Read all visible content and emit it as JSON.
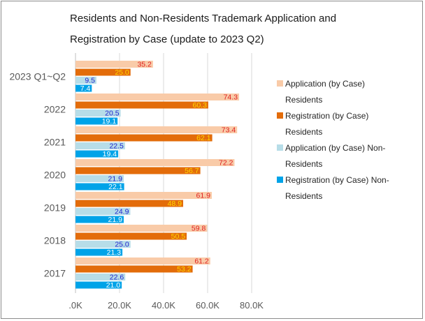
{
  "chart_data": {
    "type": "bar",
    "orientation": "horizontal",
    "title": "Residents and Non-Residents Trademark Application and Registration by Case (update to 2023 Q2)",
    "title_lines": [
      "Residents and Non-Residents Trademark Application and",
      "Registration by Case (update to 2023 Q2)"
    ],
    "categories": [
      "2023 Q1~Q2",
      "2022",
      "2021",
      "2020",
      "2019",
      "2018",
      "2017"
    ],
    "x_ticks": [
      ".0K",
      "20.0K",
      "40.0K",
      "60.0K",
      "80.0K"
    ],
    "xlim": [
      0,
      80
    ],
    "grid": true,
    "legend_position": "right",
    "series": [
      {
        "name": "Application (by Case) Residents",
        "legend_lines": [
          "Application (by Case)",
          "Residents"
        ],
        "color": "#f9cba8",
        "label_color": "#e02020",
        "values": [
          35.2,
          74.3,
          73.4,
          72.2,
          61.9,
          59.8,
          61.2
        ],
        "labels": [
          "35.2",
          "74.3",
          "73.4",
          "72.2",
          "61.9",
          "59.8",
          "61.2"
        ]
      },
      {
        "name": "Registration (by Case) Residents",
        "legend_lines": [
          "Registration (by Case)",
          "Residents"
        ],
        "color": "#e36c0a",
        "label_color": "#ffd700",
        "values": [
          25.0,
          60.3,
          62.1,
          56.7,
          48.9,
          50.5,
          53.2
        ],
        "labels": [
          "25.0",
          "60.3",
          "62.1",
          "56.7",
          "48.9",
          "50.5",
          "53.2"
        ]
      },
      {
        "name": "Application (by Case) Non-Residents",
        "legend_lines": [
          "Application (by Case) Non-",
          "Residents"
        ],
        "color": "#b7dde8",
        "label_color": "#1f1fcf",
        "values": [
          9.5,
          20.5,
          22.5,
          21.9,
          24.9,
          25.0,
          22.6
        ],
        "labels": [
          "9.5",
          "20.5",
          "22.5",
          "21.9",
          "24.9",
          "25.0",
          "22.6"
        ]
      },
      {
        "name": "Registration (by Case) Non-Residents",
        "legend_lines": [
          "Registration (by Case) Non-",
          "Residents"
        ],
        "color": "#00a3e8",
        "label_color": "#ffffff",
        "values": [
          7.4,
          19.1,
          19.4,
          22.1,
          21.9,
          21.3,
          21.0
        ],
        "labels": [
          "7.4",
          "19.1",
          "19.4",
          "22.1",
          "21.9",
          "21.3",
          "21.0"
        ]
      }
    ]
  }
}
